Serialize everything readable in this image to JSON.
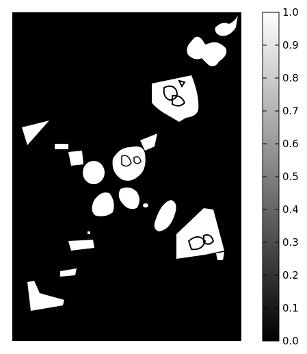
{
  "image": {
    "description_kind": "binary segmentation mask",
    "colormap": "gray",
    "background_color": "#000000",
    "foreground_color": "#ffffff",
    "axes_ticks_visible": false
  },
  "colorbar": {
    "orientation": "vertical",
    "position": "right",
    "range": [
      0.0,
      1.0
    ],
    "tick_labels": [
      "0.0",
      "0.1",
      "0.2",
      "0.3",
      "0.4",
      "0.5",
      "0.6",
      "0.7",
      "0.8",
      "0.9",
      "1.0"
    ],
    "gradient": {
      "low": "#000000",
      "high": "#ffffff"
    }
  }
}
